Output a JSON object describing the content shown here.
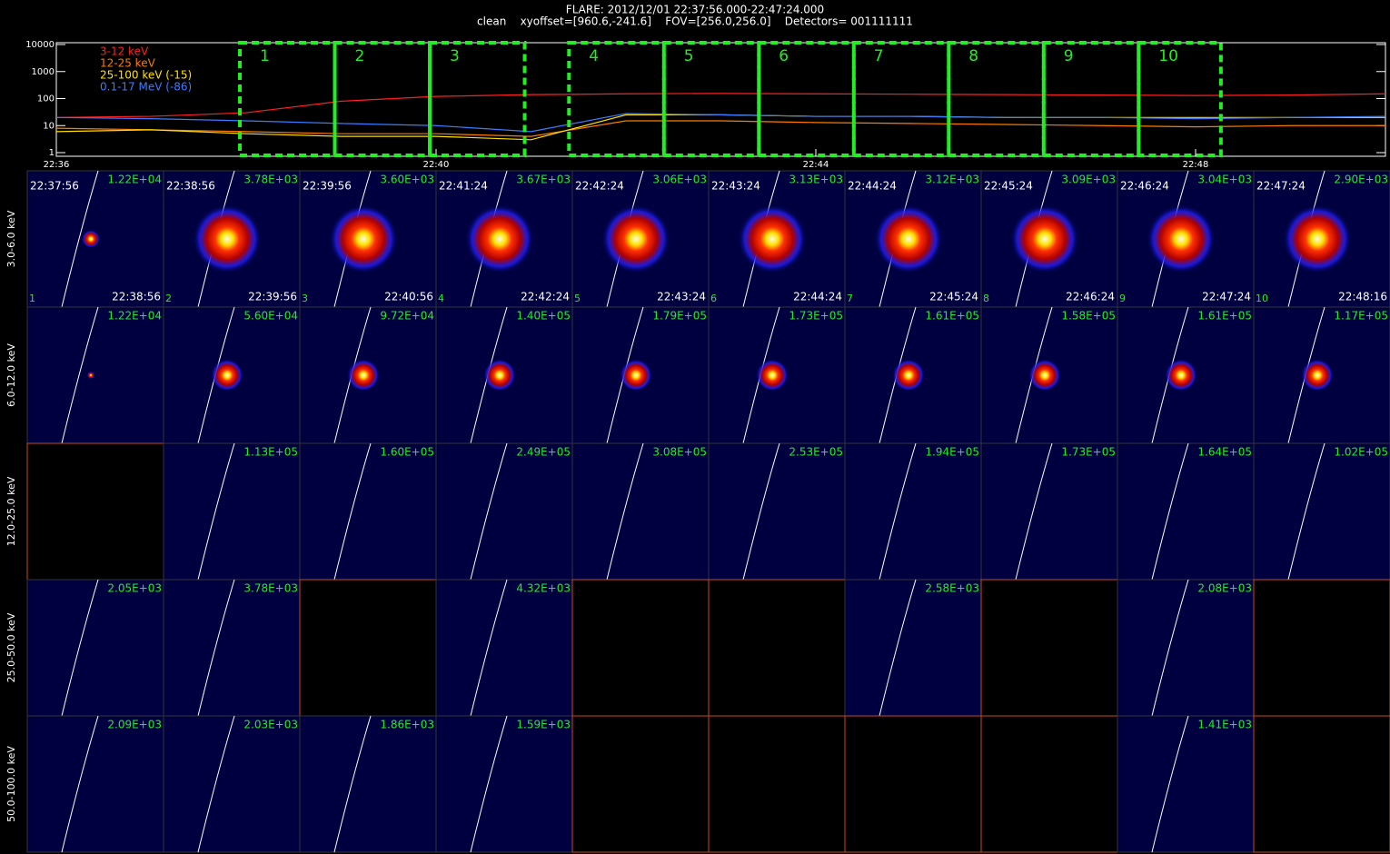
{
  "header": {
    "line1": "FLARE: 2012/12/01 22:37:56.000-22:47:24.000",
    "line2": "clean    xyoffset=[960.6,-241.6]    FOV=[256.0,256.0]    Detectors= 001111111"
  },
  "chart_data": {
    "type": "line",
    "log_y": true,
    "x": [
      "22:36",
      "22:37",
      "22:38",
      "22:39",
      "22:40",
      "22:41",
      "22:42",
      "22:43",
      "22:44",
      "22:45",
      "22:46",
      "22:47",
      "22:48",
      "22:49",
      "22:50"
    ],
    "xlim": [
      "22:36",
      "22:50"
    ],
    "xticks": [
      "22:36",
      "22:40",
      "22:44",
      "22:48"
    ],
    "ylim": [
      1,
      10000
    ],
    "yticks": [
      1,
      10,
      100,
      1000,
      10000
    ],
    "series": [
      {
        "name": "3-12 keV",
        "color": "#ff2020",
        "values": [
          20,
          22,
          30,
          80,
          120,
          140,
          150,
          155,
          150,
          145,
          140,
          135,
          130,
          135,
          150
        ]
      },
      {
        "name": "12-25 keV",
        "color": "#ff7a00",
        "values": [
          8,
          7,
          6,
          5,
          5,
          4,
          15,
          15,
          13,
          12,
          11,
          10,
          9,
          10,
          10
        ]
      },
      {
        "name": "25-100 keV (-15)",
        "color": "#ffe000",
        "values": [
          6,
          7,
          5,
          4,
          4,
          3,
          25,
          25,
          22,
          22,
          20,
          20,
          20,
          20,
          20
        ]
      },
      {
        "name": "0.1-17 MeV (-86)",
        "color": "#3a7bff",
        "values": [
          20,
          18,
          15,
          12,
          10,
          6,
          28,
          25,
          22,
          22,
          20,
          20,
          18,
          20,
          22
        ]
      }
    ],
    "intervals": [
      "1",
      "2",
      "3",
      "4",
      "5",
      "6",
      "7",
      "8",
      "9",
      "10"
    ]
  },
  "image_grid": {
    "columns": [
      {
        "index": "1",
        "start": "22:37:56",
        "end": "22:38:56"
      },
      {
        "index": "2",
        "start": "22:38:56",
        "end": "22:39:56"
      },
      {
        "index": "3",
        "start": "22:39:56",
        "end": "22:40:56"
      },
      {
        "index": "4",
        "start": "22:41:24",
        "end": "22:42:24"
      },
      {
        "index": "5",
        "start": "22:42:24",
        "end": "22:43:24"
      },
      {
        "index": "6",
        "start": "22:43:24",
        "end": "22:44:24"
      },
      {
        "index": "7",
        "start": "22:44:24",
        "end": "22:45:24"
      },
      {
        "index": "8",
        "start": "22:45:24",
        "end": "22:46:24"
      },
      {
        "index": "9",
        "start": "22:46:24",
        "end": "22:47:24"
      },
      {
        "index": "10",
        "start": "22:47:24",
        "end": "22:48:16"
      }
    ],
    "rows": [
      {
        "band": "3.0-6.0 keV",
        "max_labels": [
          "1.22E+04",
          "3.78E+03",
          "3.60E+03",
          "3.67E+03",
          "3.06E+03",
          "3.13E+03",
          "3.12E+03",
          "3.09E+03",
          "3.04E+03",
          "2.90E+03"
        ]
      },
      {
        "band": "6.0-12.0 keV",
        "max_labels": [
          "1.22E+04",
          "5.60E+04",
          "9.72E+04",
          "1.40E+05",
          "1.79E+05",
          "1.73E+05",
          "1.61E+05",
          "1.58E+05",
          "1.61E+05",
          "1.17E+05"
        ]
      },
      {
        "band": "12.0-25.0 keV",
        "max_labels": [
          null,
          "1.13E+05",
          "1.60E+05",
          "2.49E+05",
          "3.08E+05",
          "2.53E+05",
          "1.94E+05",
          "1.73E+05",
          "1.64E+05",
          "1.02E+05"
        ]
      },
      {
        "band": "25.0-50.0 keV",
        "max_labels": [
          "2.05E+03",
          "3.78E+03",
          null,
          "4.32E+03",
          null,
          null,
          "2.58E+03",
          null,
          "2.08E+03",
          null
        ]
      },
      {
        "band": "50.0-100.0 keV",
        "max_labels": [
          "2.09E+03",
          "2.03E+03",
          "1.86E+03",
          "1.59E+03",
          null,
          null,
          null,
          null,
          "1.41E+03",
          null
        ]
      }
    ]
  }
}
